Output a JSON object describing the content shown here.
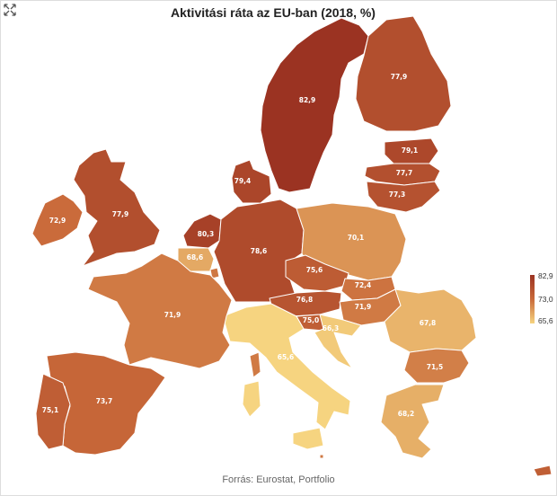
{
  "title": "Aktivitási ráta az EU-ban (2018, %)",
  "source": "Forrás: Eurostat, Portfolio",
  "legend": {
    "max": "82,9",
    "mid": "73,0",
    "min": "65,6"
  },
  "colors": {
    "high": "#9b3322",
    "mid": "#c96a3a",
    "low": "#f6d480"
  },
  "icons": {
    "expand": "expand-arrows-icon"
  },
  "regions": [
    {
      "id": "sweden",
      "label": "82,9",
      "value": 82.9
    },
    {
      "id": "finland",
      "label": "77,9",
      "value": 77.9
    },
    {
      "id": "estonia",
      "label": "79,1",
      "value": 79.1
    },
    {
      "id": "latvia",
      "label": "77,7",
      "value": 77.7
    },
    {
      "id": "lithuania",
      "label": "77,3",
      "value": 77.3
    },
    {
      "id": "denmark",
      "label": "79,4",
      "value": 79.4
    },
    {
      "id": "uk",
      "label": "77,9",
      "value": 77.9
    },
    {
      "id": "ireland",
      "label": "72,9",
      "value": 72.9
    },
    {
      "id": "netherlands",
      "label": "80,3",
      "value": 80.3
    },
    {
      "id": "belgium",
      "label": "68,6",
      "value": 68.6
    },
    {
      "id": "germany",
      "label": "78,6",
      "value": 78.6
    },
    {
      "id": "poland",
      "label": "70,1",
      "value": 70.1
    },
    {
      "id": "czechia",
      "label": "75,6",
      "value": 75.6
    },
    {
      "id": "slovakia",
      "label": "72,4",
      "value": 72.4
    },
    {
      "id": "austria",
      "label": "76,8",
      "value": 76.8
    },
    {
      "id": "hungary",
      "label": "71,9",
      "value": 71.9
    },
    {
      "id": "slovenia",
      "label": "75,0",
      "value": 75.0
    },
    {
      "id": "croatia",
      "label": "66,3",
      "value": 66.3
    },
    {
      "id": "romania",
      "label": "67,8",
      "value": 67.8
    },
    {
      "id": "bulgaria",
      "label": "71,5",
      "value": 71.5
    },
    {
      "id": "greece",
      "label": "68,2",
      "value": 68.2
    },
    {
      "id": "italy",
      "label": "65,6",
      "value": 65.6
    },
    {
      "id": "france",
      "label": "71,9",
      "value": 71.9
    },
    {
      "id": "spain",
      "label": "73,7",
      "value": 73.7
    },
    {
      "id": "portugal",
      "label": "75,1",
      "value": 75.1
    },
    {
      "id": "cyprus",
      "label": "",
      "value": 75.0
    },
    {
      "id": "luxembourg",
      "label": "",
      "value": 72.0
    },
    {
      "id": "malta",
      "label": "",
      "value": 72.0
    }
  ]
}
